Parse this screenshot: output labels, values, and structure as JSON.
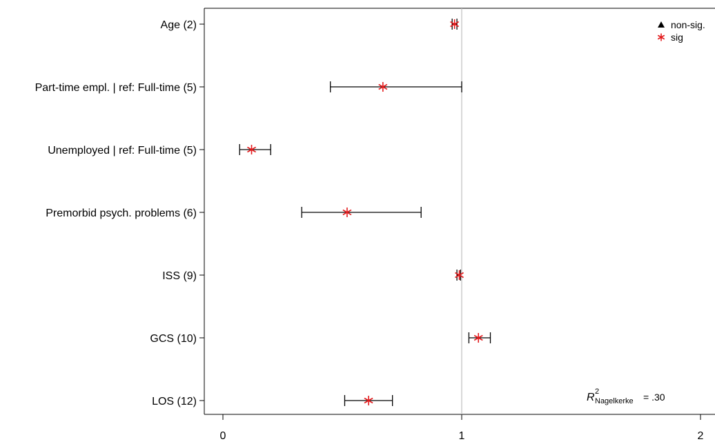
{
  "chart_data": {
    "type": "forest",
    "title": "",
    "xlabel": "",
    "ylabel": "",
    "xlim": [
      0,
      2
    ],
    "x_ticks": [
      0,
      1,
      2
    ],
    "reference_line": 1,
    "grid": false,
    "legend": {
      "placement": "top-right",
      "entries": [
        {
          "label": "non-sig.",
          "marker": "triangle",
          "color": "#000000"
        },
        {
          "label": "sig",
          "marker": "asterisk",
          "color": "#e31a1c"
        }
      ]
    },
    "annotation": {
      "symbol": "R",
      "superscript": "2",
      "subscript": "Nagelkerke",
      "value": "= .30"
    },
    "rows": [
      {
        "label": "Age (2)",
        "estimate": 0.97,
        "ci_low": 0.96,
        "ci_high": 0.98,
        "significant": true
      },
      {
        "label": "Part-time empl. | ref: Full-time (5)",
        "estimate": 0.67,
        "ci_low": 0.45,
        "ci_high": 1.0,
        "significant": true
      },
      {
        "label": "Unemployed | ref: Full-time (5)",
        "estimate": 0.12,
        "ci_low": 0.07,
        "ci_high": 0.2,
        "significant": true
      },
      {
        "label": "Premorbid psych. problems (6)",
        "estimate": 0.52,
        "ci_low": 0.33,
        "ci_high": 0.83,
        "significant": true
      },
      {
        "label": "ISS (9)",
        "estimate": 0.99,
        "ci_low": 0.98,
        "ci_high": 0.995,
        "significant": true
      },
      {
        "label": "GCS (10)",
        "estimate": 1.07,
        "ci_low": 1.03,
        "ci_high": 1.12,
        "significant": true
      },
      {
        "label": "LOS (12)",
        "estimate": 0.61,
        "ci_low": 0.51,
        "ci_high": 0.71,
        "significant": true
      }
    ],
    "colors": {
      "sig": "#e31a1c",
      "nonsig": "#000000",
      "ci": "#000000",
      "refline": "#bdbdbd",
      "axis": "#000000"
    }
  }
}
